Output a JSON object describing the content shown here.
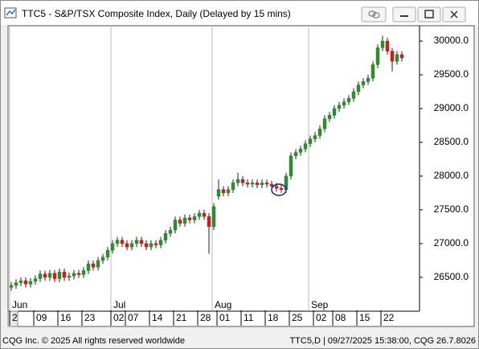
{
  "window_title": "TTC5 - S&P/TSX Composite Index, Daily (Delayed by 15 mins)",
  "footer_left": "CQG Inc. © 2025 All rights reserved worldwide",
  "footer_right": "TTC5,D | 09/27/2025 15:38:00, CQG 26.7.8026",
  "chart_data": {
    "type": "candlestick",
    "categories": [
      "2",
      null,
      null,
      null,
      null,
      "09",
      null,
      null,
      null,
      null,
      "16",
      null,
      null,
      null,
      null,
      "23",
      null,
      null,
      null,
      null,
      null,
      "02",
      null,
      null,
      "07",
      null,
      null,
      null,
      null,
      "14",
      null,
      null,
      null,
      null,
      "21",
      null,
      null,
      null,
      null,
      "28",
      null,
      null,
      null,
      "01",
      null,
      null,
      null,
      null,
      "11",
      null,
      null,
      null,
      null,
      "18",
      null,
      null,
      null,
      null,
      "25",
      null,
      null,
      null,
      null,
      "02",
      null,
      null,
      null,
      "08",
      null,
      null,
      null,
      null,
      "15",
      null,
      null,
      null,
      null,
      "22",
      null,
      null,
      null,
      null
    ],
    "months": [
      "Jun",
      null,
      null,
      null,
      null,
      null,
      null,
      null,
      null,
      null,
      null,
      null,
      null,
      null,
      null,
      null,
      null,
      null,
      null,
      null,
      null,
      "Jul",
      null,
      null,
      null,
      null,
      null,
      null,
      null,
      null,
      null,
      null,
      null,
      null,
      null,
      null,
      null,
      null,
      null,
      null,
      null,
      null,
      "Aug",
      null,
      null,
      null,
      null,
      null,
      null,
      null,
      null,
      null,
      null,
      null,
      null,
      null,
      null,
      null,
      null,
      null,
      null,
      null,
      "Sep",
      null,
      null,
      null,
      null,
      null,
      null,
      null,
      null,
      null,
      null,
      null,
      null,
      null,
      null,
      null,
      null,
      null,
      null
    ],
    "open": [
      26350,
      26380,
      26420,
      26450,
      26400,
      26440,
      26480,
      26550,
      26500,
      26560,
      26480,
      26580,
      26500,
      26520,
      26560,
      26540,
      26600,
      26700,
      26650,
      26750,
      26800,
      26900,
      27000,
      27050,
      27000,
      26950,
      27000,
      27050,
      27000,
      26950,
      27000,
      26980,
      27050,
      27150,
      27200,
      27350,
      27300,
      27380,
      27350,
      27400,
      27450,
      27400,
      27250,
      27700,
      27800,
      27750,
      27800,
      27900,
      27950,
      27900,
      27880,
      27900,
      27870,
      27900,
      27880,
      27850,
      27820,
      27800,
      28000,
      28300,
      28350,
      28400,
      28480,
      28550,
      28600,
      28700,
      28850,
      28900,
      29000,
      29050,
      29100,
      29150,
      29250,
      29350,
      29400,
      29450,
      29650,
      29900,
      30000,
      29850,
      29700,
      29800
    ],
    "high": [
      26430,
      26470,
      26500,
      26500,
      26490,
      26530,
      26600,
      26600,
      26610,
      26610,
      26630,
      26630,
      26570,
      26610,
      26610,
      26650,
      26750,
      26750,
      26800,
      26850,
      26950,
      27050,
      27100,
      27100,
      27050,
      27050,
      27100,
      27100,
      27050,
      27050,
      27050,
      27100,
      27200,
      27250,
      27400,
      27400,
      27430,
      27430,
      27450,
      27500,
      27500,
      27450,
      27600,
      27950,
      27850,
      27850,
      27950,
      28050,
      28000,
      27950,
      27950,
      27950,
      27950,
      27950,
      27930,
      27900,
      27870,
      28050,
      28350,
      28400,
      28450,
      28530,
      28600,
      28650,
      28750,
      28900,
      28950,
      29050,
      29100,
      29150,
      29200,
      29300,
      29400,
      29450,
      29500,
      29700,
      29950,
      30080,
      30050,
      29900,
      29850,
      29850
    ],
    "low": [
      26300,
      26330,
      26370,
      26350,
      26350,
      26390,
      26430,
      26450,
      26450,
      26430,
      26430,
      26450,
      26450,
      26470,
      26490,
      26490,
      26550,
      26600,
      26600,
      26700,
      26750,
      26850,
      26950,
      26950,
      26900,
      26900,
      26950,
      26950,
      26900,
      26900,
      26930,
      26930,
      27000,
      27100,
      27150,
      27250,
      27250,
      27300,
      27300,
      27350,
      27350,
      26850,
      27200,
      27650,
      27700,
      27700,
      27750,
      27850,
      27850,
      27830,
      27830,
      27820,
      27820,
      27830,
      27800,
      27770,
      27750,
      27750,
      27950,
      28250,
      28300,
      28350,
      28430,
      28500,
      28550,
      28650,
      28800,
      28850,
      28950,
      29000,
      29050,
      29100,
      29200,
      29300,
      29350,
      29400,
      29600,
      29850,
      29800,
      29550,
      29650,
      29700
    ],
    "close": [
      26380,
      26420,
      26450,
      26400,
      26440,
      26480,
      26550,
      26500,
      26560,
      26480,
      26580,
      26500,
      26520,
      26560,
      26540,
      26600,
      26700,
      26650,
      26750,
      26800,
      26900,
      27000,
      27050,
      27000,
      26950,
      27000,
      27050,
      27000,
      26950,
      27000,
      26980,
      27050,
      27150,
      27200,
      27350,
      27300,
      27380,
      27350,
      27400,
      27450,
      27400,
      27250,
      27550,
      27800,
      27750,
      27800,
      27900,
      27950,
      27900,
      27880,
      27900,
      27870,
      27900,
      27880,
      27850,
      27820,
      27800,
      28000,
      28300,
      28350,
      28400,
      28480,
      28550,
      28600,
      28700,
      28850,
      28900,
      29000,
      29050,
      29100,
      29150,
      29250,
      29350,
      29400,
      29450,
      29650,
      29900,
      30000,
      29850,
      29700,
      29800,
      29750
    ],
    "up_color": "#2e8b2e",
    "down_color": "#c81e1e",
    "ylim": [
      26010,
      30215
    ],
    "yticks": [
      {
        "value": 26500,
        "label": "26500.0"
      },
      {
        "value": 27000,
        "label": "27000.0"
      },
      {
        "value": 27500,
        "label": "27500.0"
      },
      {
        "value": 28000,
        "label": "28000.0"
      },
      {
        "value": 28500,
        "label": "28500.0"
      },
      {
        "value": 29000,
        "label": "29000.0"
      },
      {
        "value": 29500,
        "label": "29500.0"
      },
      {
        "value": 30000,
        "label": "30000.0"
      }
    ]
  }
}
